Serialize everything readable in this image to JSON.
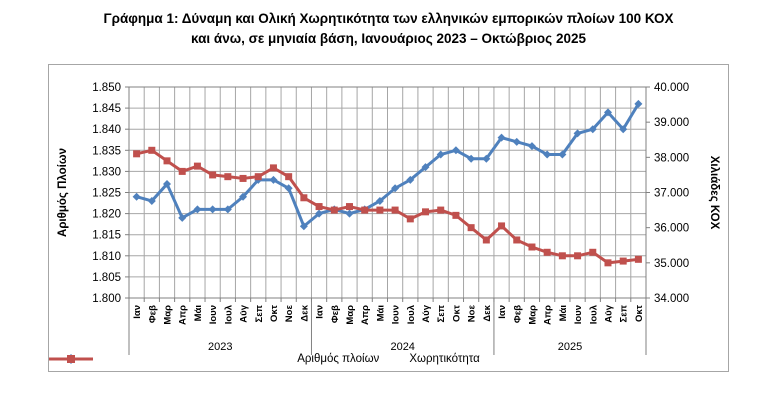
{
  "title": {
    "line1": "Γράφημα 1: Δύναμη και Ολική Χωρητικότητα των ελληνικών εμπορικών πλοίων 100 ΚΟΧ",
    "line2": "και άνω, σε μηνιαία βάση, Ιανουάριος 2023 – Οκτώβριος 2025"
  },
  "chart_data": {
    "type": "line",
    "title": "Γράφημα 1: Δύναμη και Ολική Χωρητικότητα των ελληνικών εμπορικών πλοίων 100 ΚΟΧ και άνω, σε μηνιαία βάση, Ιανουάριος 2023 – Οκτώβριος 2025",
    "grid": true,
    "legend_position": "bottom",
    "x_axis": {
      "month_labels": [
        "Ιαν",
        "Φεβ",
        "Μαρ",
        "Απρ",
        "Μάι",
        "Ιουν",
        "Ιουλ",
        "Αύγ",
        "Σεπ",
        "Οκτ",
        "Νοε",
        "Δεκ",
        "Ιαν",
        "Φεβ",
        "Μαρ",
        "Απρ",
        "Μάι",
        "Ιουν",
        "Ιουλ",
        "Αύγ",
        "Σεπ",
        "Οκτ",
        "Νοε",
        "Δεκ",
        "Ιαν",
        "Φεβ",
        "Μαρ",
        "Απρ",
        "Μάι",
        "Ιουν",
        "Ιουλ",
        "Αύγ",
        "Σεπ",
        "Οκτ"
      ],
      "year_groups": [
        {
          "label": "2023",
          "months": 12
        },
        {
          "label": "2024",
          "months": 12
        },
        {
          "label": "2025",
          "months": 10
        }
      ]
    },
    "left_axis": {
      "title": "Αριθμός Πλοίων",
      "min": 1800,
      "max": 1850,
      "tick_step": 5,
      "tick_labels": [
        "1.850",
        "1.845",
        "1.840",
        "1.835",
        "1.830",
        "1.825",
        "1.820",
        "1.815",
        "1.810",
        "1.805",
        "1.800"
      ]
    },
    "right_axis": {
      "title": "Χιλιάδες ΚΟΧ",
      "min": 34000,
      "max": 40000,
      "tick_step": 1000,
      "tick_labels": [
        "40.000",
        "39.000",
        "38.000",
        "37.000",
        "36.000",
        "35.000",
        "34.000"
      ]
    },
    "series": [
      {
        "name": "Αριθμός πλοίων",
        "axis": "left",
        "color": "#4F81BD",
        "marker": "diamond",
        "values": [
          1824,
          1823,
          1827,
          1819,
          1821,
          1821,
          1821,
          1824,
          1828,
          1828,
          1826,
          1817,
          1820,
          1821,
          1820,
          1821,
          1823,
          1826,
          1828,
          1831,
          1834,
          1835,
          1833,
          1833,
          1838,
          1837,
          1836,
          1834,
          1834,
          1839,
          1840,
          1844,
          1840,
          1846
        ]
      },
      {
        "name": "Χωρητικότητα",
        "axis": "right",
        "color": "#C0504D",
        "marker": "square",
        "values": [
          38100,
          38200,
          37900,
          37600,
          37750,
          37500,
          37450,
          37400,
          37450,
          37700,
          37450,
          36850,
          36600,
          36500,
          36600,
          36500,
          36500,
          36500,
          36250,
          36450,
          36500,
          36350,
          36000,
          35650,
          36050,
          35650,
          35450,
          35300,
          35200,
          35200,
          35300,
          35000,
          35050,
          35100
        ]
      }
    ],
    "colors": {
      "gridline": "#a6a6a6",
      "plot_border": "#808080",
      "axis_text": "#000000"
    }
  }
}
